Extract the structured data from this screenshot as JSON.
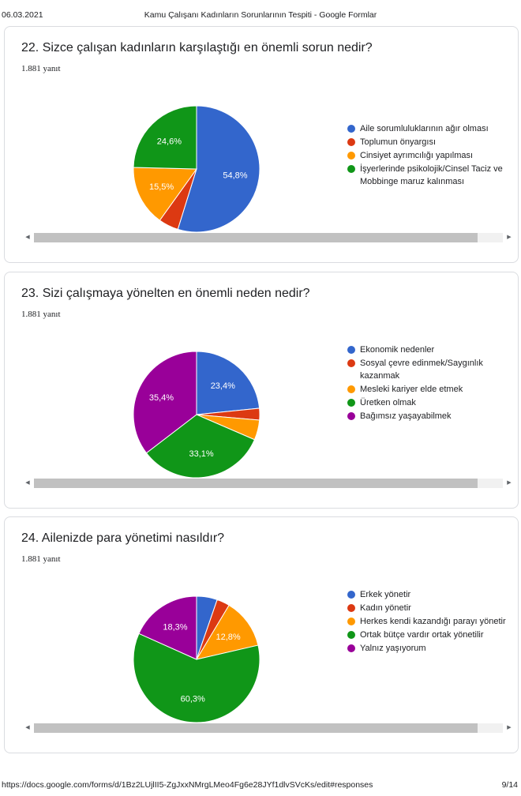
{
  "header": {
    "date": "06.03.2021",
    "title": "Kamu Çalışanı Kadınların Sorunlarının Tespiti - Google Formlar"
  },
  "footer": {
    "url": "https://docs.google.com/forms/d/1Bz2LUjlII5-ZgJxxNMrgLMeo4Fg6e28JYf1dlvSVcKs/edit#responses",
    "page": "9/14"
  },
  "questions": [
    {
      "title": "22. Sizce çalışan kadınların karşılaştığı en önemli sorun nedir?",
      "response_count": "1.881 yanıt",
      "legend": [
        {
          "label": "Aile sorumluluklarının ağır olması",
          "color": "#3366cc"
        },
        {
          "label": "Toplumun önyargısı",
          "color": "#dc3912"
        },
        {
          "label": "Cinsiyet ayrımcılığı yapılması",
          "color": "#ff9900"
        },
        {
          "label": "İşyerlerinde psikolojik/Cinsel Taciz ve Mobbinge maruz kalınması",
          "color": "#109618"
        }
      ]
    },
    {
      "title": "23. Sizi çalışmaya yönelten en önemli neden nedir?",
      "response_count": "1.881 yanıt",
      "legend": [
        {
          "label": "Ekonomik nedenler",
          "color": "#3366cc"
        },
        {
          "label": "Sosyal çevre edinmek/Saygınlık kazanmak",
          "color": "#dc3912"
        },
        {
          "label": "Mesleki kariyer elde etmek",
          "color": "#ff9900"
        },
        {
          "label": "Üretken olmak",
          "color": "#109618"
        },
        {
          "label": "Bağımsız yaşayabilmek",
          "color": "#990099"
        }
      ]
    },
    {
      "title": "24. Ailenizde para yönetimi nasıldır?",
      "response_count": "1.881 yanıt",
      "legend": [
        {
          "label": "Erkek yönetir",
          "color": "#3366cc"
        },
        {
          "label": "Kadın yönetir",
          "color": "#dc3912"
        },
        {
          "label": "Herkes kendi kazandığı parayı yönetir",
          "color": "#ff9900"
        },
        {
          "label": "Ortak bütçe vardır ortak yönetilir",
          "color": "#109618"
        },
        {
          "label": "Yalnız yaşıyorum",
          "color": "#990099"
        }
      ]
    }
  ],
  "chart_data": [
    {
      "type": "pie",
      "title": "22. Sizce çalışan kadınların karşılaştığı en önemli sorun nedir?",
      "categories": [
        "Aile sorumluluklarının ağır olması",
        "Toplumun önyargısı",
        "Cinsiyet ayrımcılığı yapılması",
        "İşyerlerinde psikolojik/Cinsel Taciz ve Mobbinge maruz kalınması"
      ],
      "values": [
        54.8,
        5.1,
        15.5,
        24.6
      ],
      "value_labels": [
        "54,8%",
        "",
        "15,5%",
        "24,6%"
      ],
      "colors": [
        "#3366cc",
        "#dc3912",
        "#ff9900",
        "#109618"
      ],
      "legend_position": "right"
    },
    {
      "type": "pie",
      "title": "23. Sizi çalışmaya yönelten en önemli neden nedir?",
      "categories": [
        "Ekonomik nedenler",
        "Sosyal çevre edinmek/Saygınlık kazanmak",
        "Mesleki kariyer elde etmek",
        "Üretken olmak",
        "Bağımsız yaşayabilmek"
      ],
      "values": [
        23.4,
        3.0,
        5.1,
        33.1,
        35.4
      ],
      "value_labels": [
        "23,4%",
        "",
        "",
        "33,1%",
        "35,4%"
      ],
      "colors": [
        "#3366cc",
        "#dc3912",
        "#ff9900",
        "#109618",
        "#990099"
      ],
      "legend_position": "right"
    },
    {
      "type": "pie",
      "title": "24. Ailenizde para yönetimi nasıldır?",
      "categories": [
        "Erkek yönetir",
        "Kadın yönetir",
        "Herkes kendi kazandığı parayı yönetir",
        "Ortak bütçe vardır ortak yönetilir",
        "Yalnız yaşıyorum"
      ],
      "values": [
        5.3,
        3.3,
        12.8,
        60.3,
        18.3
      ],
      "value_labels": [
        "",
        "",
        "12,8%",
        "60,3%",
        "18,3%"
      ],
      "colors": [
        "#3366cc",
        "#dc3912",
        "#ff9900",
        "#109618",
        "#990099"
      ],
      "legend_position": "right"
    }
  ]
}
